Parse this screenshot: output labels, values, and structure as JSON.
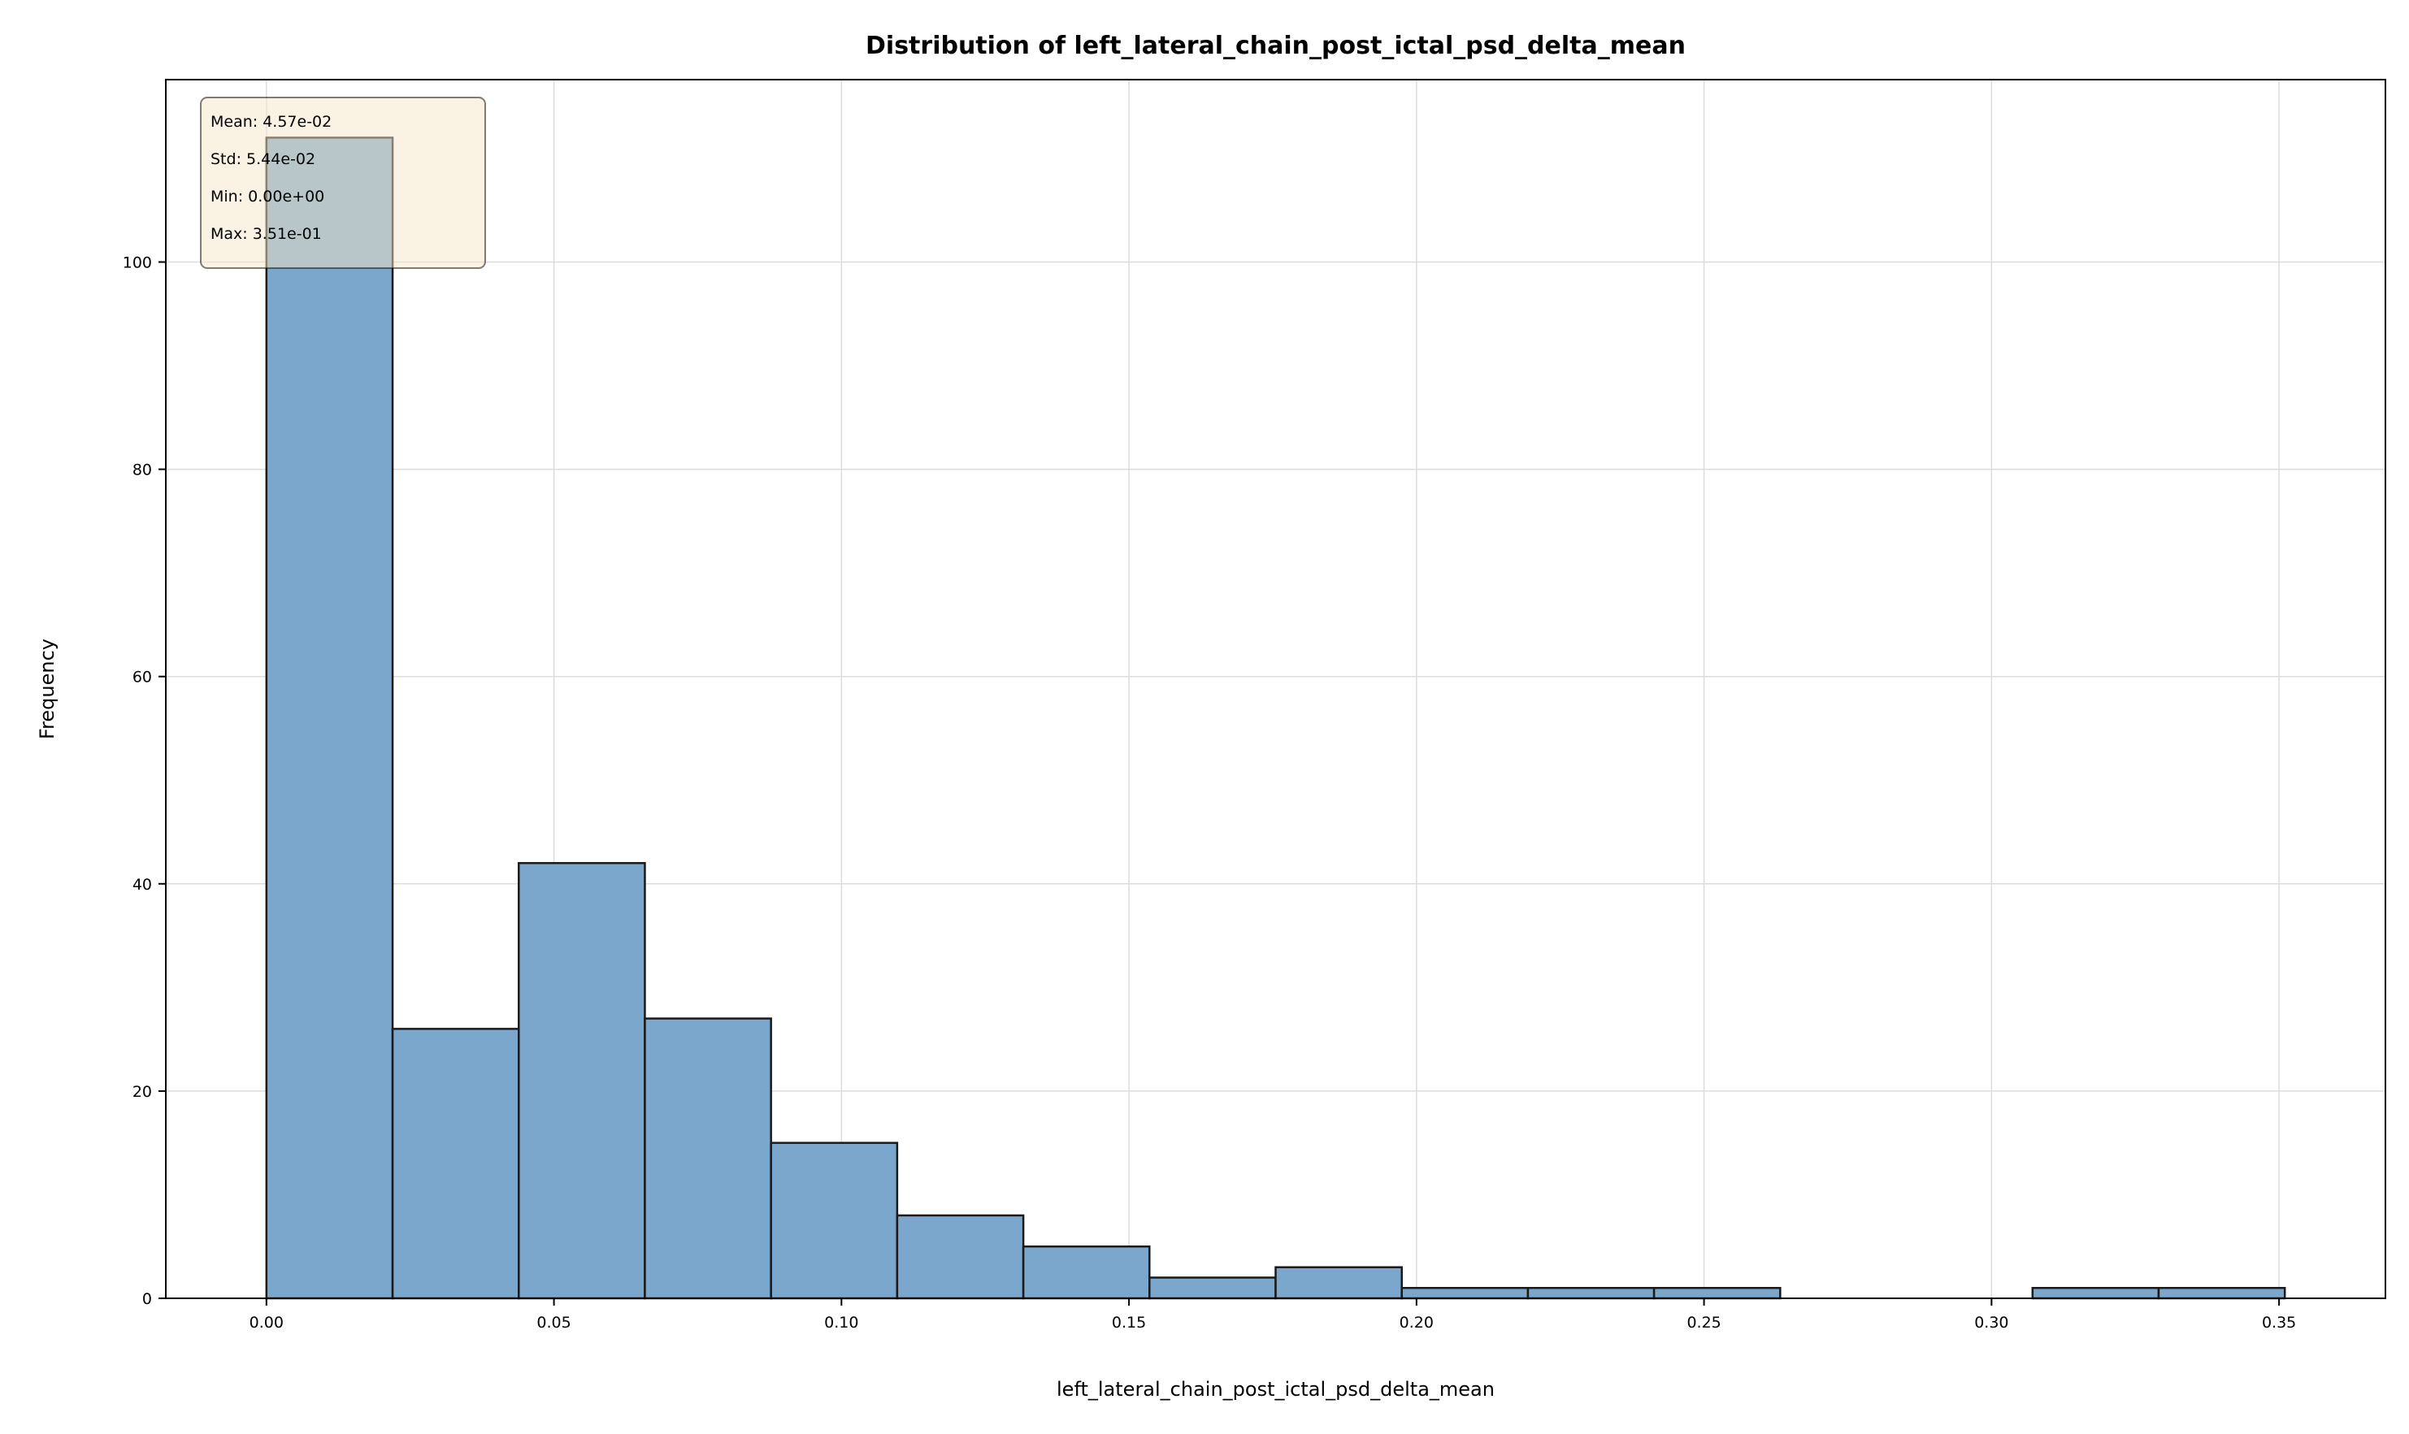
{
  "chart_data": {
    "type": "bar",
    "title": "Distribution of left_lateral_chain_post_ictal_psd_delta_mean",
    "xlabel": "left_lateral_chain_post_ictal_psd_delta_mean",
    "ylabel": "Frequency",
    "xlim": [
      -0.0175,
      0.3685
    ],
    "ylim": [
      0,
      117.6
    ],
    "bin_edges": [
      0.0,
      0.02194,
      0.04388,
      0.06581,
      0.08775,
      0.10969,
      0.13163,
      0.15356,
      0.1755,
      0.19744,
      0.21938,
      0.24131,
      0.26325,
      0.28519,
      0.30713,
      0.32906,
      0.351
    ],
    "values": [
      112,
      26,
      42,
      27,
      15,
      8,
      5,
      2,
      3,
      1,
      1,
      1,
      0,
      0,
      1,
      1
    ],
    "x_ticks": [
      0.0,
      0.05,
      0.1,
      0.15,
      0.2,
      0.25,
      0.3,
      0.35
    ],
    "x_tick_labels": [
      "0.00",
      "0.05",
      "0.10",
      "0.15",
      "0.20",
      "0.25",
      "0.30",
      "0.35"
    ],
    "y_ticks": [
      0,
      20,
      40,
      60,
      80,
      100
    ],
    "y_tick_labels": [
      "0",
      "20",
      "40",
      "60",
      "80",
      "100"
    ],
    "grid": true,
    "bar_color": "#7ba7cc",
    "bar_edge_color": "#1a1a1a",
    "stats_box": {
      "placement": "top-left",
      "lines": [
        "Mean: 4.57e-02",
        "Std: 5.44e-02",
        "Min: 0.00e+00",
        "Max: 3.51e-01"
      ],
      "background": "#f5e6c8"
    }
  }
}
